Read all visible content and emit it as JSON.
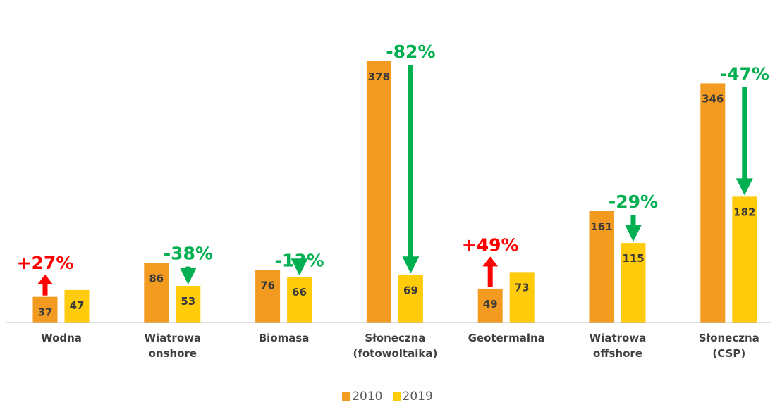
{
  "chart_data": {
    "type": "bar",
    "categories": [
      [
        "Wodna"
      ],
      [
        "Wiatrowa",
        "onshore"
      ],
      [
        "Biomasa"
      ],
      [
        "Słoneczna",
        "(fotowoltaika)"
      ],
      [
        "Geotermalna"
      ],
      [
        "Wiatrowa",
        "offshore"
      ],
      [
        "Słoneczna",
        "(CSP)"
      ]
    ],
    "series": [
      {
        "name": "2010",
        "values": [
          37,
          86,
          76,
          378,
          49,
          161,
          346
        ],
        "color": "#F39A21"
      },
      {
        "name": "2019",
        "values": [
          47,
          53,
          66,
          69,
          73,
          115,
          182
        ],
        "color": "#FFCB0A"
      }
    ],
    "changes": [
      {
        "label": "+27%",
        "direction": "up",
        "color": "#FF0000"
      },
      {
        "label": "-38%",
        "direction": "down",
        "color": "#00B050"
      },
      {
        "label": "-13%",
        "direction": "down",
        "color": "#00B050"
      },
      {
        "label": "-82%",
        "direction": "down",
        "color": "#00B050"
      },
      {
        "label": "+49%",
        "direction": "up",
        "color": "#FF0000"
      },
      {
        "label": "-29%",
        "direction": "down",
        "color": "#00B050"
      },
      {
        "label": "-47%",
        "direction": "down",
        "color": "#00B050"
      }
    ],
    "ylim": [
      0,
      400
    ],
    "grid": false,
    "legend_position": "bottom"
  },
  "legend": {
    "items": [
      {
        "label": "2010",
        "color": "#F39A21"
      },
      {
        "label": "2019",
        "color": "#FFCB0A"
      }
    ]
  }
}
